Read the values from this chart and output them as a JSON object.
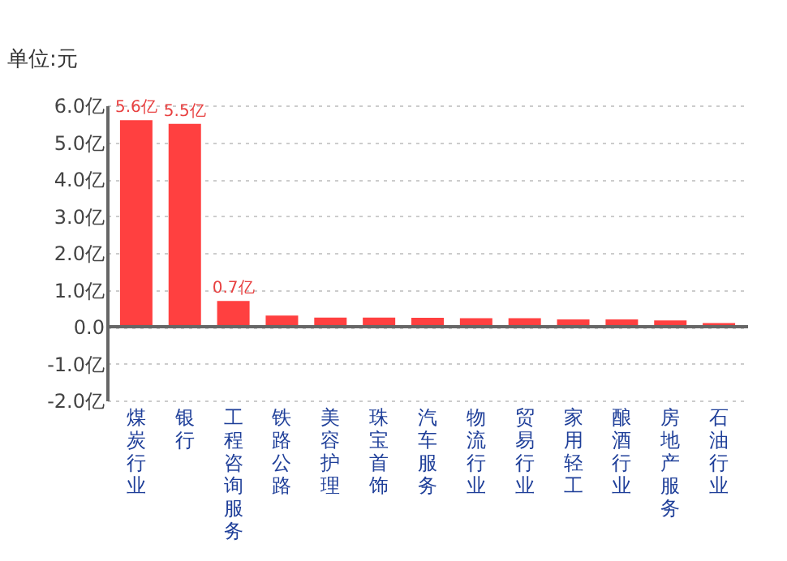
{
  "chart_data": {
    "type": "bar",
    "ylabel": "单位:元",
    "categories": [
      "煤炭行业",
      "银行",
      "工程咨询服务",
      "铁路公路",
      "美容护理",
      "珠宝首饰",
      "汽车服务",
      "物流行业",
      "贸易行业",
      "家用轻工",
      "酿酒行业",
      "房地产服务",
      "石油行业"
    ],
    "values": [
      5.6,
      5.5,
      0.7,
      0.3,
      0.25,
      0.25,
      0.24,
      0.23,
      0.23,
      0.2,
      0.2,
      0.17,
      0.1
    ],
    "value_labels": [
      "5.6亿",
      "5.5亿",
      "0.7亿",
      null,
      null,
      null,
      null,
      null,
      null,
      null,
      null,
      null,
      null
    ],
    "color": "#ff4040",
    "ylim": [
      -2,
      6
    ],
    "yticks": [
      {
        "value": -2,
        "label": "-2.0亿"
      },
      {
        "value": -1,
        "label": "-1.0亿"
      },
      {
        "value": 0,
        "label": "0.0"
      },
      {
        "value": 1,
        "label": "1.0亿"
      },
      {
        "value": 2,
        "label": "2.0亿"
      },
      {
        "value": 3,
        "label": "3.0亿"
      },
      {
        "value": 4,
        "label": "4.0亿"
      },
      {
        "value": 5,
        "label": "5.0亿"
      },
      {
        "value": 6,
        "label": "6.0亿"
      }
    ],
    "grid": "y"
  }
}
